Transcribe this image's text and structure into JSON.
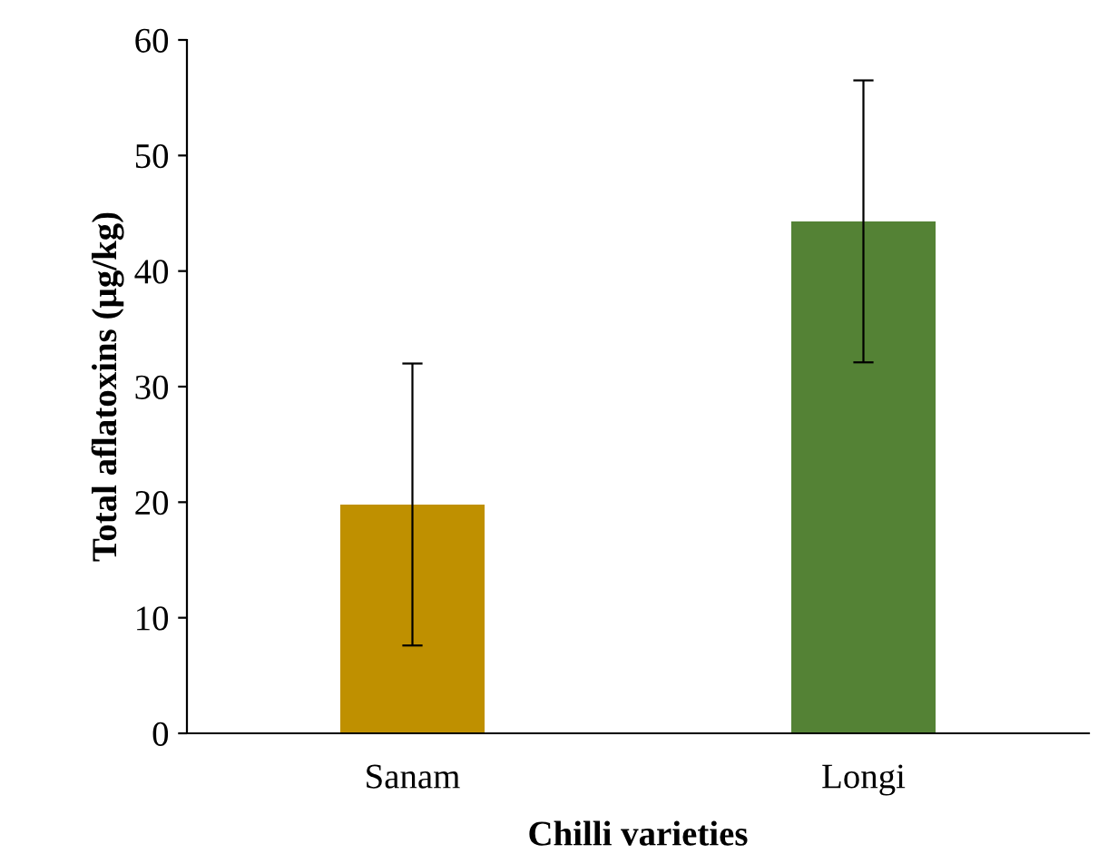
{
  "chart_data": {
    "type": "bar",
    "xlabel": "Chilli varieties",
    "ylabel": "Total aflatoxins (µg/kg)",
    "categories": [
      "Sanam",
      "Longi"
    ],
    "values": [
      19.8,
      44.3
    ],
    "colors": [
      "#bf9000",
      "#548235"
    ],
    "errors": [
      12.2,
      12.2
    ],
    "ylim": [
      0,
      60
    ],
    "yticks": [
      0,
      10,
      20,
      30,
      40,
      50,
      60
    ],
    "grid": false,
    "legend": false
  }
}
